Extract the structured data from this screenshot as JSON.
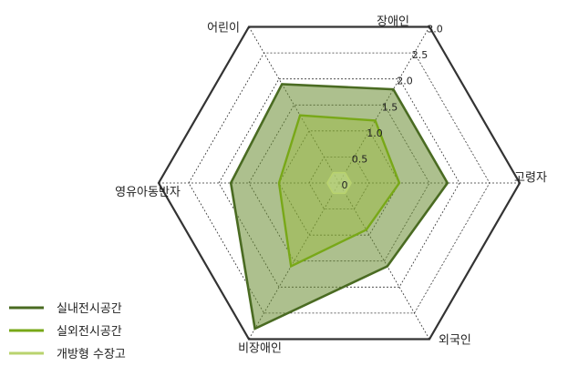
{
  "chart_data": {
    "type": "radar",
    "axes": [
      "장애인",
      "고령자",
      "외국인",
      "비장애인",
      "영유아동반자",
      "어린이"
    ],
    "rlim": [
      0,
      3.0
    ],
    "ticks": [
      "0",
      "0.5",
      "1.0",
      "1.5",
      "2.0",
      "2.5",
      "3.0"
    ],
    "tick_values": [
      0,
      0.5,
      1.0,
      1.5,
      2.0,
      2.5,
      3.0
    ],
    "grid": true,
    "legend_position": "bottom-left",
    "series": [
      {
        "name": "실내전시공간",
        "values": [
          1.8,
          1.8,
          1.6,
          2.8,
          1.8,
          1.9
        ],
        "color": "#4a6b22"
      },
      {
        "name": "실외전시공간",
        "values": [
          1.2,
          1.0,
          0.9,
          1.6,
          1.0,
          1.3
        ],
        "color": "#78a818"
      },
      {
        "name": "개방형 수장고",
        "values": [
          0.2,
          0.2,
          0.2,
          0.2,
          0.2,
          0.2
        ],
        "color": "#b9d36e"
      }
    ]
  }
}
